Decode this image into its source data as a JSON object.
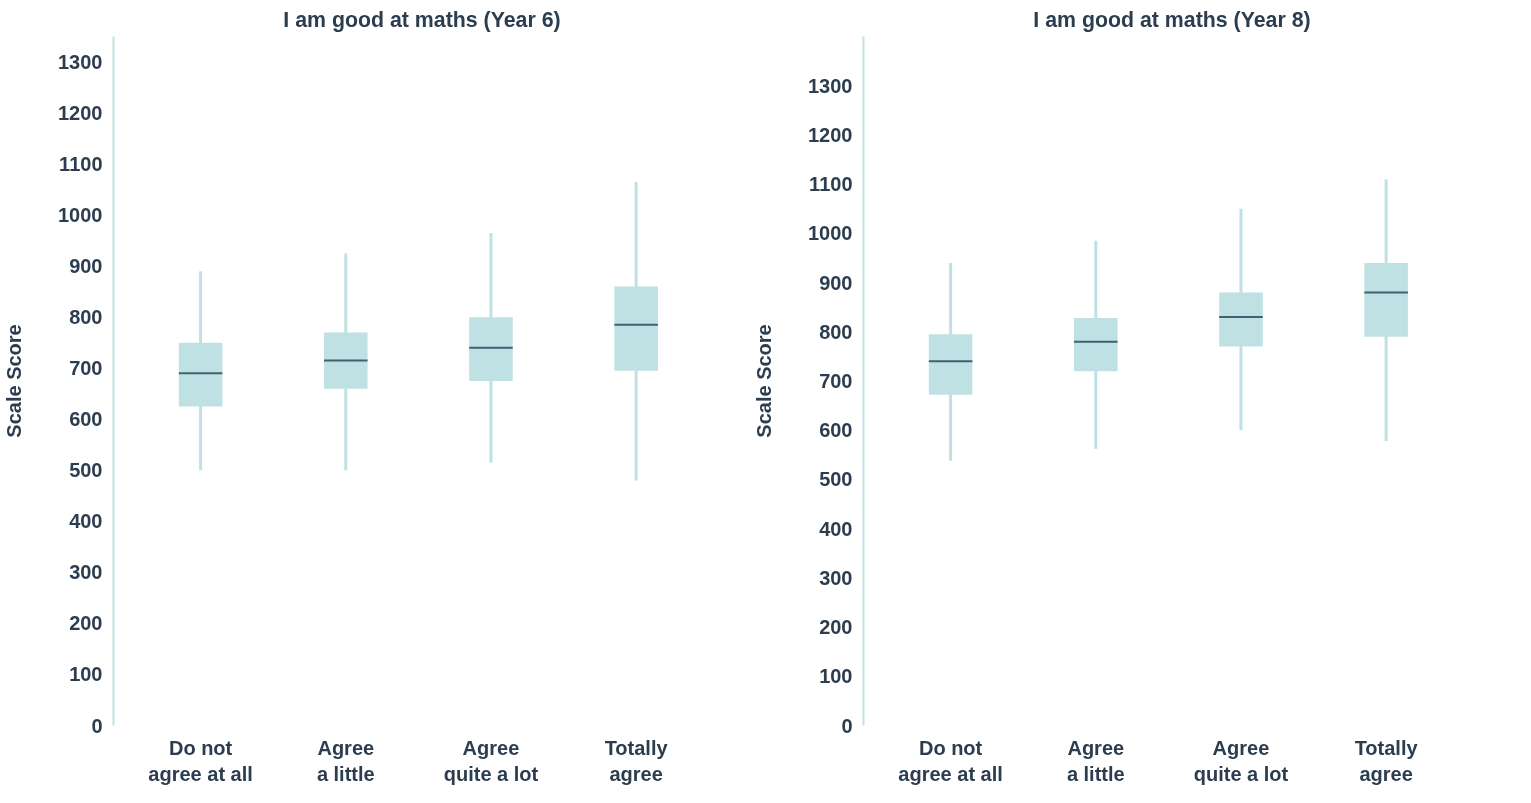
{
  "chart_data": [
    {
      "type": "box",
      "title": "I am good at maths (Year 6)",
      "ylabel": "Scale Score",
      "categories": [
        "Do not\nagree at all",
        "Agree\na little",
        "Agree\nquite a lot",
        "Totally\nagree"
      ],
      "ylim": [
        0,
        1350
      ],
      "yticks": [
        0,
        100,
        200,
        300,
        400,
        500,
        600,
        700,
        800,
        900,
        1000,
        1100,
        1200,
        1300
      ],
      "grid": false,
      "series": [
        {
          "color": "#bfe1e3",
          "boxes": [
            {
              "low": 500,
              "q1": 625,
              "median": 690,
              "q3": 750,
              "high": 890
            },
            {
              "low": 500,
              "q1": 660,
              "median": 715,
              "q3": 770,
              "high": 925
            },
            {
              "low": 515,
              "q1": 675,
              "median": 740,
              "q3": 800,
              "high": 965
            },
            {
              "low": 480,
              "q1": 695,
              "median": 785,
              "q3": 860,
              "high": 1065
            }
          ]
        }
      ]
    },
    {
      "type": "box",
      "title": "I am good at maths (Year 8)",
      "ylabel": "Scale Score",
      "categories": [
        "Do not\nagree at all",
        "Agree\na little",
        "Agree\nquite a lot",
        "Totally\nagree"
      ],
      "ylim": [
        0,
        1400
      ],
      "yticks": [
        0,
        100,
        200,
        300,
        400,
        500,
        600,
        700,
        800,
        900,
        1000,
        1100,
        1200,
        1300
      ],
      "grid": false,
      "series": [
        {
          "color": "#bfe1e3",
          "boxes": [
            {
              "low": 538,
              "q1": 672,
              "median": 740,
              "q3": 795,
              "high": 940
            },
            {
              "low": 562,
              "q1": 720,
              "median": 780,
              "q3": 828,
              "high": 985
            },
            {
              "low": 600,
              "q1": 770,
              "median": 830,
              "q3": 880,
              "high": 1050
            },
            {
              "low": 578,
              "q1": 790,
              "median": 880,
              "q3": 940,
              "high": 1110
            }
          ]
        }
      ]
    }
  ]
}
